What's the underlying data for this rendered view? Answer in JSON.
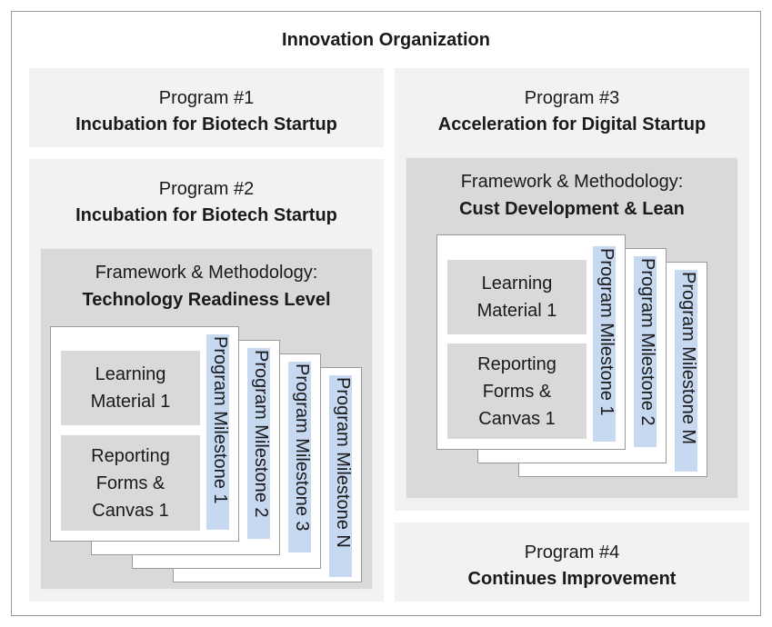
{
  "title": "Innovation Organization",
  "programs": [
    {
      "number": "Program #1",
      "name": "Incubation for Biotech Startup"
    },
    {
      "number": "Program #2",
      "name": "Incubation for Biotech Startup"
    },
    {
      "number": "Program #3",
      "name": "Acceleration for Digital Startup"
    },
    {
      "number": "Program #4",
      "name": "Continues Improvement"
    }
  ],
  "framework_left": {
    "label": "Framework & Methodology:",
    "name": "Technology Readiness Level"
  },
  "framework_right": {
    "label": "Framework & Methodology:",
    "name": "Cust Development & Lean"
  },
  "cards_left": {
    "learning": "Learning Material 1",
    "reporting": "Reporting Forms & Canvas 1",
    "milestones": [
      "Program Milestone 1",
      "Program Milestone 2",
      "Program Milestone 3",
      "Program Milestone N"
    ]
  },
  "cards_right": {
    "learning": "Learning Material 1",
    "reporting": "Reporting Forms & Canvas 1",
    "milestones": [
      "Program Milestone 1",
      "Program Milestone 2",
      "Program Milestone M"
    ]
  }
}
